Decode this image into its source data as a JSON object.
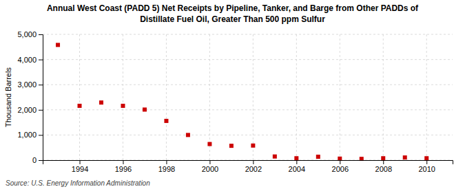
{
  "chart_data": {
    "type": "scatter",
    "title": "Annual West Coast (PADD 5) Net Receipts by Pipeline, Tanker, and Barge from Other PADDs of",
    "subtitle": "Distillate Fuel Oil, Greater Than 500 ppm Sulfur",
    "ylabel": "Thousand Barrels",
    "annotations": [
      "Source: U.S. Energy Information Administration"
    ],
    "x": [
      1993,
      1994,
      1995,
      1996,
      1997,
      1998,
      1999,
      2000,
      2001,
      2002,
      2003,
      2004,
      2005,
      2006,
      2007,
      2008,
      2009,
      2010
    ],
    "values": [
      4580,
      2160,
      2290,
      2160,
      2010,
      1560,
      1000,
      640,
      570,
      580,
      145,
      75,
      135,
      60,
      50,
      75,
      105,
      75
    ],
    "color": "#cc0000",
    "marker": "square",
    "xlim": [
      1992.3,
      2011.2
    ],
    "ylim": [
      0,
      5000
    ],
    "xticks": [
      1994,
      1996,
      1998,
      2000,
      2002,
      2004,
      2006,
      2008,
      2010
    ],
    "yticks": [
      0,
      {
        "value": 1000,
        "label": "1,000"
      },
      {
        "value": 2000,
        "label": "2,000"
      },
      {
        "value": 3000,
        "label": "3,000"
      },
      {
        "value": 4000,
        "label": "4,000"
      },
      {
        "value": 5000,
        "label": "5,000"
      }
    ],
    "grid": true
  }
}
